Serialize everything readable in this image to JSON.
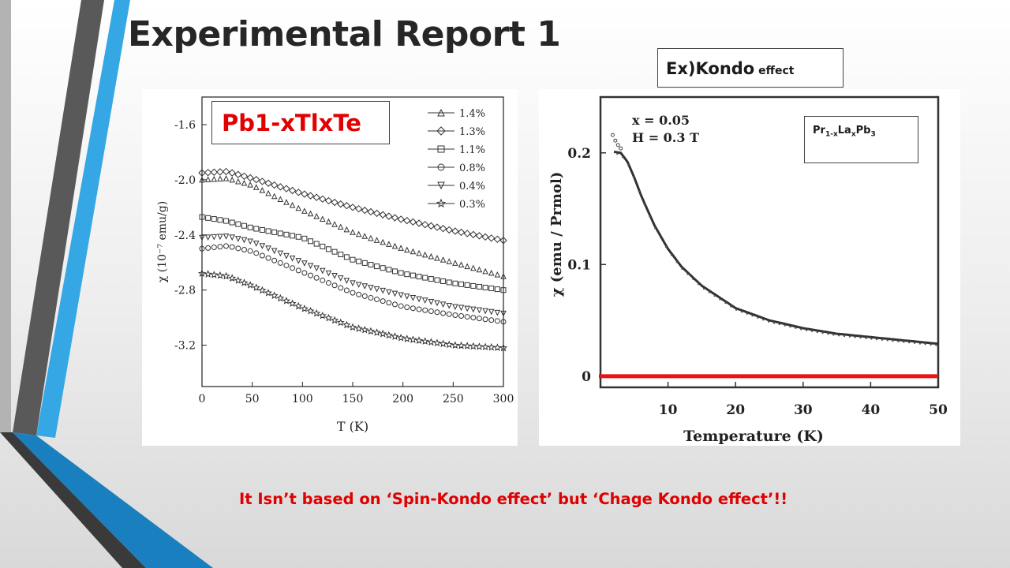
{
  "slide": {
    "title": "Experimental Report 1",
    "left_label": "Pb1-xTlxTe",
    "right_label_big": "Ex)Kondo",
    "right_label_small": " effect",
    "formula_parts": [
      "Pr",
      "1-x",
      "La",
      "x",
      "Pb",
      "3"
    ],
    "bottom_note": "It Isn’t based on ‘Spin-Kondo effect’ but ‘Chage Kondo effect’!!"
  },
  "chart_data": [
    {
      "type": "scatter",
      "xlabel": "T (K)",
      "ylabel": "χ (10⁻⁷ emu/g)",
      "xlim": [
        0,
        300
      ],
      "ylim": [
        -3.5,
        -1.4
      ],
      "xticks": [
        "0",
        "50",
        "100",
        "150",
        "200",
        "250",
        "300"
      ],
      "yticks": [
        "-1.6",
        "-2.0",
        "-2.4",
        "-2.8",
        "-3.2"
      ],
      "legend_position": "top-right",
      "series": [
        {
          "name": "1.4%",
          "marker": "triangle-up",
          "x": [
            0,
            25,
            50,
            100,
            150,
            200,
            250,
            300
          ],
          "values": [
            -2.0,
            -1.99,
            -2.04,
            -2.22,
            -2.38,
            -2.5,
            -2.6,
            -2.7
          ]
        },
        {
          "name": "1.3%",
          "marker": "diamond",
          "x": [
            0,
            25,
            50,
            100,
            150,
            200,
            250,
            300
          ],
          "values": [
            -1.95,
            -1.94,
            -1.99,
            -2.1,
            -2.2,
            -2.29,
            -2.37,
            -2.44
          ]
        },
        {
          "name": "1.1%",
          "marker": "square",
          "x": [
            0,
            25,
            50,
            100,
            150,
            200,
            250,
            300
          ],
          "values": [
            -2.27,
            -2.3,
            -2.35,
            -2.42,
            -2.58,
            -2.68,
            -2.75,
            -2.8
          ]
        },
        {
          "name": "0.8%",
          "marker": "circle",
          "x": [
            0,
            25,
            50,
            100,
            150,
            200,
            250,
            300
          ],
          "values": [
            -2.5,
            -2.48,
            -2.52,
            -2.67,
            -2.82,
            -2.92,
            -2.98,
            -3.03
          ]
        },
        {
          "name": "0.4%",
          "marker": "triangle-down",
          "x": [
            0,
            25,
            50,
            100,
            150,
            200,
            250,
            300
          ],
          "values": [
            -2.42,
            -2.41,
            -2.45,
            -2.6,
            -2.75,
            -2.84,
            -2.92,
            -2.97
          ]
        },
        {
          "name": "0.3%",
          "marker": "star",
          "x": [
            0,
            25,
            50,
            100,
            150,
            200,
            250,
            300
          ],
          "values": [
            -2.68,
            -2.7,
            -2.77,
            -2.93,
            -3.07,
            -3.15,
            -3.2,
            -3.22
          ]
        }
      ]
    },
    {
      "type": "line",
      "xlabel": "Temperature (K)",
      "ylabel": "χ  (emu / Prmol)",
      "xlim": [
        0,
        50
      ],
      "ylim": [
        -0.01,
        0.25
      ],
      "xticks": [
        "10",
        "20",
        "30",
        "40",
        "50"
      ],
      "yticks": [
        "0",
        "0.1",
        "0.2"
      ],
      "annotations": [
        "x = 0.05",
        "H = 0.3 T"
      ],
      "series": [
        {
          "name": "",
          "color": "#333333",
          "x": [
            2,
            3,
            4,
            5,
            6,
            8,
            10,
            12,
            15,
            20,
            25,
            30,
            35,
            40,
            45,
            50
          ],
          "values": [
            0.201,
            0.2,
            0.192,
            0.178,
            0.162,
            0.135,
            0.114,
            0.098,
            0.081,
            0.061,
            0.05,
            0.043,
            0.038,
            0.035,
            0.032,
            0.029
          ]
        },
        {
          "name": "",
          "color": "#ee1111",
          "x": [
            0,
            50
          ],
          "values": [
            0,
            0
          ]
        }
      ],
      "extra_points": {
        "x": [
          1.8,
          2.2,
          2.6,
          3.0
        ],
        "values": [
          0.216,
          0.211,
          0.207,
          0.204
        ]
      }
    }
  ],
  "colors": {
    "accent_text": "#e00000",
    "bar_dark": "#555555",
    "bar_blue": "#35a7e4",
    "bar_gray": "#b3b3b3",
    "red_line": "#ee1111"
  }
}
